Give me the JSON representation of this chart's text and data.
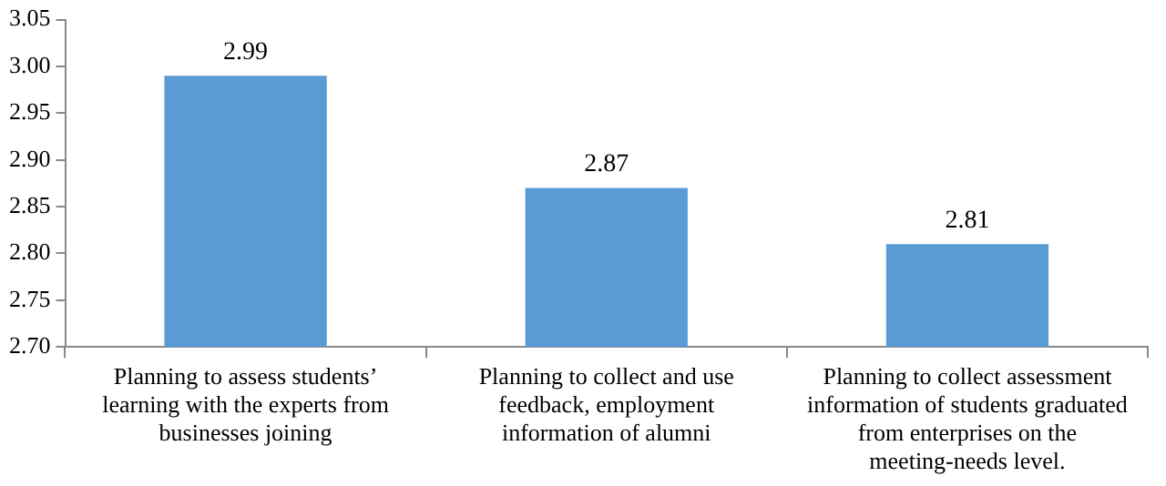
{
  "chart_data": {
    "type": "bar",
    "categories": [
      "Planning to assess students’ learning with the experts from businesses joining",
      "Planning to collect and use feedback, employment information of alumni",
      "Planning to collect assessment information of students graduated from enterprises on the meeting-needs level."
    ],
    "values": [
      2.99,
      2.87,
      2.81
    ],
    "color": "#5b9bd5",
    "ylim": [
      2.7,
      3.05
    ],
    "yticks": [
      {
        "value": 2.7,
        "label": "2.70"
      },
      {
        "value": 2.75,
        "label": "2.75"
      },
      {
        "value": 2.8,
        "label": "2.80"
      },
      {
        "value": 2.85,
        "label": "2.85"
      },
      {
        "value": 2.9,
        "label": "2.90"
      },
      {
        "value": 2.95,
        "label": "2.95"
      },
      {
        "value": 3.0,
        "label": "3.00"
      },
      {
        "value": 3.05,
        "label": "3.05"
      }
    ],
    "grid": false,
    "legend": false,
    "data_labels": true
  }
}
